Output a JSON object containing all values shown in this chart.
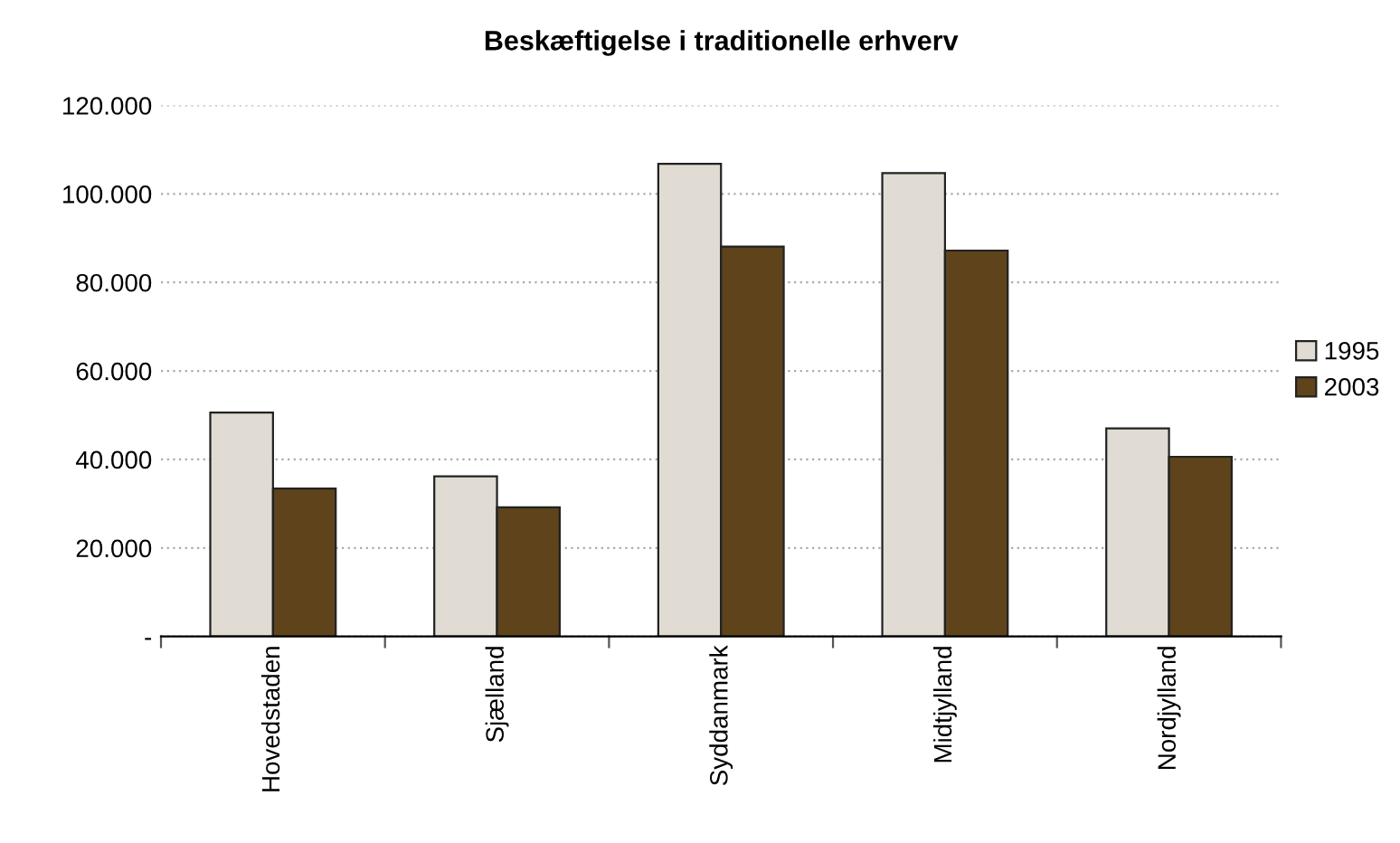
{
  "chart_data": {
    "type": "bar",
    "title": "Beskæftigelse i traditionelle erhverv",
    "categories": [
      "Hovedstaden",
      "Sjælland",
      "Syddanmark",
      "Midtjylland",
      "Nordjylland"
    ],
    "series": [
      {
        "name": "1995",
        "color": "#e0dcd3",
        "values": [
          50600,
          36200,
          106800,
          104700,
          47000
        ]
      },
      {
        "name": "2003",
        "color": "#5e431b",
        "values": [
          33400,
          29200,
          88100,
          87200,
          40600
        ]
      }
    ],
    "ylim": [
      0,
      120000
    ],
    "yticks": [
      {
        "value": 0,
        "label": "-"
      },
      {
        "value": 20000,
        "label": "20.000"
      },
      {
        "value": 40000,
        "label": "40.000"
      },
      {
        "value": 60000,
        "label": "60.000"
      },
      {
        "value": 80000,
        "label": "80.000"
      },
      {
        "value": 100000,
        "label": "100.000"
      },
      {
        "value": 120000,
        "label": "120.000"
      }
    ],
    "grid": "y",
    "legend": "right"
  }
}
